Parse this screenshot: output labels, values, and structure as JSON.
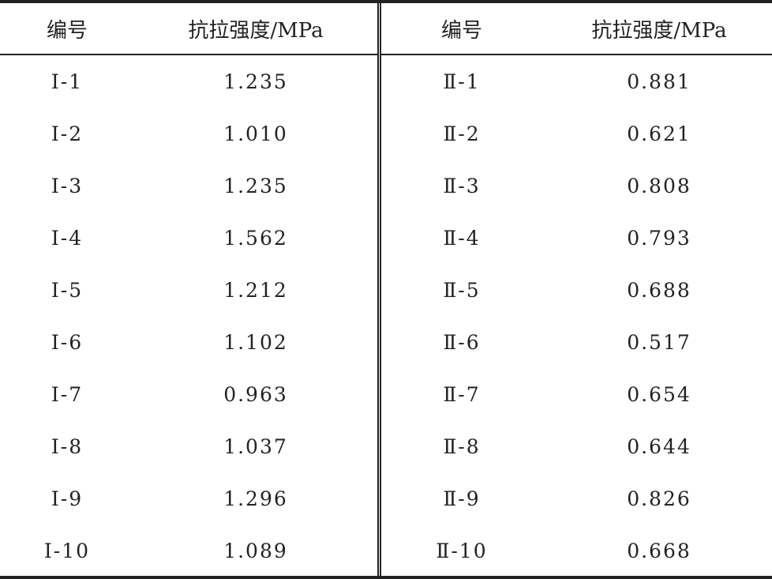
{
  "table": {
    "headers": [
      "编号",
      "抗拉强度/MPa",
      "编号",
      "抗拉强度/MPa"
    ],
    "rows": [
      [
        "Ⅰ-1",
        "1.235",
        "Ⅱ-1",
        "0.881"
      ],
      [
        "Ⅰ-2",
        "1.010",
        "Ⅱ-2",
        "0.621"
      ],
      [
        "Ⅰ-3",
        "1.235",
        "Ⅱ-3",
        "0.808"
      ],
      [
        "Ⅰ-4",
        "1.562",
        "Ⅱ-4",
        "0.793"
      ],
      [
        "Ⅰ-5",
        "1.212",
        "Ⅱ-5",
        "0.688"
      ],
      [
        "Ⅰ-6",
        "1.102",
        "Ⅱ-6",
        "0.517"
      ],
      [
        "Ⅰ-7",
        "0.963",
        "Ⅱ-7",
        "0.654"
      ],
      [
        "Ⅰ-8",
        "1.037",
        "Ⅱ-8",
        "0.644"
      ],
      [
        "Ⅰ-9",
        "1.296",
        "Ⅱ-9",
        "0.826"
      ],
      [
        "Ⅰ-10",
        "1.089",
        "Ⅱ-10",
        "0.668"
      ]
    ]
  }
}
